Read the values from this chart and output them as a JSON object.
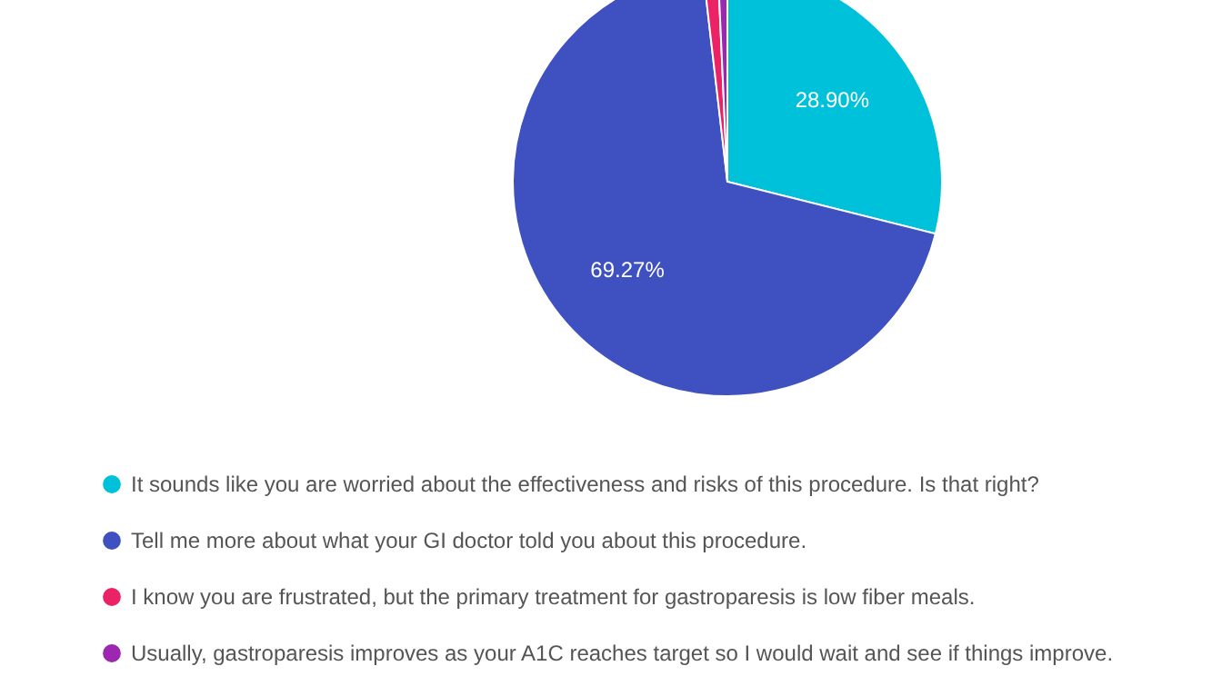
{
  "chart_data": {
    "type": "pie",
    "categories": [
      "It sounds like you are worried about the effectiveness and risks of this procedure. Is that right?",
      "Tell me more about what your GI doctor told you about this procedure.",
      "I know you are frustrated, but the primary treatment for gastroparesis is low fiber meals.",
      "Usually, gastroparesis improves as your A1C reaches target so I would wait and see if things improve."
    ],
    "values": [
      28.9,
      69.27,
      1.12,
      0.71
    ],
    "value_labels": [
      "28.90%",
      "69.27%",
      null,
      null
    ],
    "colors": [
      "#00c1da",
      "#3f51c0",
      "#ec2266",
      "#9c27b0"
    ],
    "legend": "bottom"
  }
}
